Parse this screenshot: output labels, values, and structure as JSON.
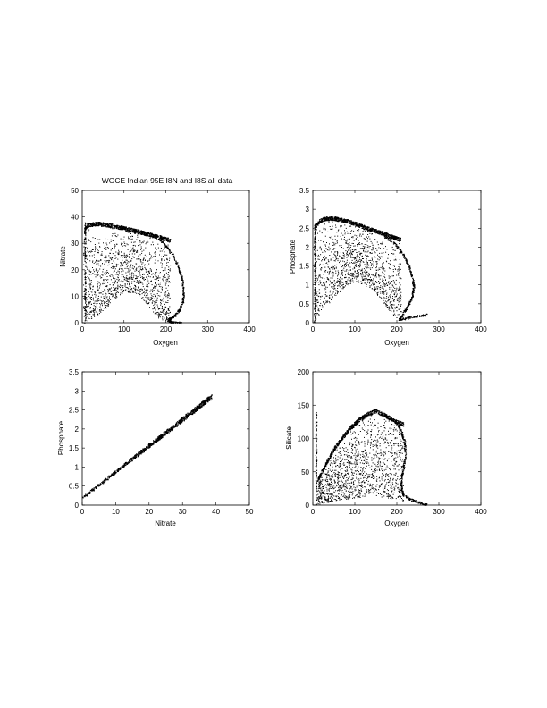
{
  "figure": {
    "title": "WOCE Indian 95E I8N and I8S all data"
  },
  "chart_data": [
    {
      "type": "scatter",
      "title": "WOCE Indian 95E I8N and I8S all data",
      "xlabel": "Oxygen",
      "ylabel": "Nitrate",
      "xlim": [
        0,
        400
      ],
      "ylim": [
        0,
        50
      ],
      "xticks": [
        0,
        100,
        200,
        300,
        400
      ],
      "yticks": [
        0,
        10,
        20,
        30,
        40,
        50
      ],
      "grid": false,
      "marker_color": "#000000",
      "upper_envelope": [
        [
          2,
          25
        ],
        [
          5,
          36
        ],
        [
          10,
          37.5
        ],
        [
          20,
          38
        ],
        [
          40,
          38.2
        ],
        [
          60,
          37.8
        ],
        [
          80,
          37.2
        ],
        [
          100,
          36.5
        ],
        [
          120,
          35.8
        ],
        [
          140,
          35
        ],
        [
          160,
          34.2
        ],
        [
          180,
          33.3
        ],
        [
          200,
          32.5
        ],
        [
          210,
          32
        ]
      ],
      "lower_envelope": [
        [
          2,
          0
        ],
        [
          20,
          1
        ],
        [
          60,
          6
        ],
        [
          100,
          12
        ],
        [
          130,
          11
        ],
        [
          160,
          6
        ],
        [
          180,
          2
        ],
        [
          200,
          0.5
        ],
        [
          230,
          0
        ]
      ],
      "outer_arc": [
        [
          170,
          33
        ],
        [
          195,
          30
        ],
        [
          215,
          26
        ],
        [
          230,
          21
        ],
        [
          238,
          17
        ],
        [
          242,
          12
        ],
        [
          240,
          8
        ],
        [
          232,
          5
        ],
        [
          222,
          3
        ],
        [
          212,
          2
        ],
        [
          205,
          1
        ],
        [
          210,
          0.5
        ],
        [
          220,
          0.2
        ],
        [
          240,
          0
        ]
      ],
      "vertical_band": {
        "x": [
          5,
          8
        ],
        "y": [
          0,
          38
        ]
      }
    },
    {
      "type": "scatter",
      "xlabel": "Oxygen",
      "ylabel": "Phosphate",
      "xlim": [
        0,
        400
      ],
      "ylim": [
        0,
        3.5
      ],
      "xticks": [
        0,
        100,
        200,
        300,
        400
      ],
      "yticks": [
        0,
        0.5,
        1,
        1.5,
        2,
        2.5,
        3,
        3.5
      ],
      "grid": false,
      "marker_color": "#000000",
      "upper_envelope": [
        [
          2,
          2.0
        ],
        [
          5,
          2.6
        ],
        [
          15,
          2.75
        ],
        [
          30,
          2.82
        ],
        [
          50,
          2.82
        ],
        [
          80,
          2.75
        ],
        [
          100,
          2.68
        ],
        [
          130,
          2.55
        ],
        [
          160,
          2.45
        ],
        [
          190,
          2.32
        ],
        [
          210,
          2.25
        ]
      ],
      "lower_envelope": [
        [
          2,
          0
        ],
        [
          20,
          0.3
        ],
        [
          60,
          0.8
        ],
        [
          100,
          1.1
        ],
        [
          140,
          0.9
        ],
        [
          170,
          0.5
        ],
        [
          190,
          0.2
        ],
        [
          210,
          0.05
        ]
      ],
      "outer_arc": [
        [
          170,
          2.3
        ],
        [
          195,
          2.1
        ],
        [
          215,
          1.8
        ],
        [
          228,
          1.5
        ],
        [
          236,
          1.2
        ],
        [
          240,
          0.95
        ],
        [
          236,
          0.7
        ],
        [
          226,
          0.45
        ],
        [
          214,
          0.25
        ],
        [
          205,
          0.1
        ],
        [
          220,
          0.12
        ],
        [
          245,
          0.18
        ],
        [
          270,
          0.22
        ]
      ],
      "vertical_band": {
        "x": [
          3,
          6
        ],
        "y": [
          0,
          2.7
        ]
      }
    },
    {
      "type": "scatter",
      "xlabel": "Nitrate",
      "ylabel": "Phosphate",
      "xlim": [
        0,
        50
      ],
      "ylim": [
        0,
        3.5
      ],
      "xticks": [
        0,
        10,
        20,
        30,
        40,
        50
      ],
      "yticks": [
        0,
        0.5,
        1,
        1.5,
        2,
        2.5,
        3,
        3.5
      ],
      "grid": false,
      "marker_color": "#000000",
      "trend_line": [
        [
          0,
          0.2
        ],
        [
          38.5,
          2.85
        ]
      ]
    },
    {
      "type": "scatter",
      "xlabel": "Oxygen",
      "ylabel": "Silicate",
      "xlim": [
        0,
        400
      ],
      "ylim": [
        0,
        200
      ],
      "xticks": [
        0,
        100,
        200,
        300,
        400
      ],
      "yticks": [
        0,
        50,
        100,
        150,
        200
      ],
      "grid": false,
      "marker_color": "#000000",
      "upper_envelope": [
        [
          10,
          40
        ],
        [
          30,
          65
        ],
        [
          50,
          88
        ],
        [
          70,
          105
        ],
        [
          90,
          120
        ],
        [
          110,
          132
        ],
        [
          130,
          140
        ],
        [
          150,
          145
        ],
        [
          165,
          140
        ],
        [
          180,
          135
        ],
        [
          200,
          128
        ],
        [
          215,
          125
        ]
      ],
      "lower_envelope": [
        [
          5,
          0
        ],
        [
          30,
          3
        ],
        [
          60,
          8
        ],
        [
          100,
          10
        ],
        [
          140,
          15
        ],
        [
          170,
          12
        ],
        [
          200,
          8
        ],
        [
          230,
          4
        ],
        [
          260,
          1
        ]
      ],
      "outer_arc": [
        [
          200,
          125
        ],
        [
          210,
          110
        ],
        [
          218,
          95
        ],
        [
          220,
          75
        ],
        [
          215,
          55
        ],
        [
          210,
          40
        ],
        [
          210,
          25
        ],
        [
          215,
          15
        ],
        [
          235,
          8
        ],
        [
          255,
          4
        ],
        [
          270,
          1
        ]
      ],
      "vertical_band": {
        "x": [
          6,
          9
        ],
        "y": [
          0,
          140
        ]
      }
    }
  ]
}
